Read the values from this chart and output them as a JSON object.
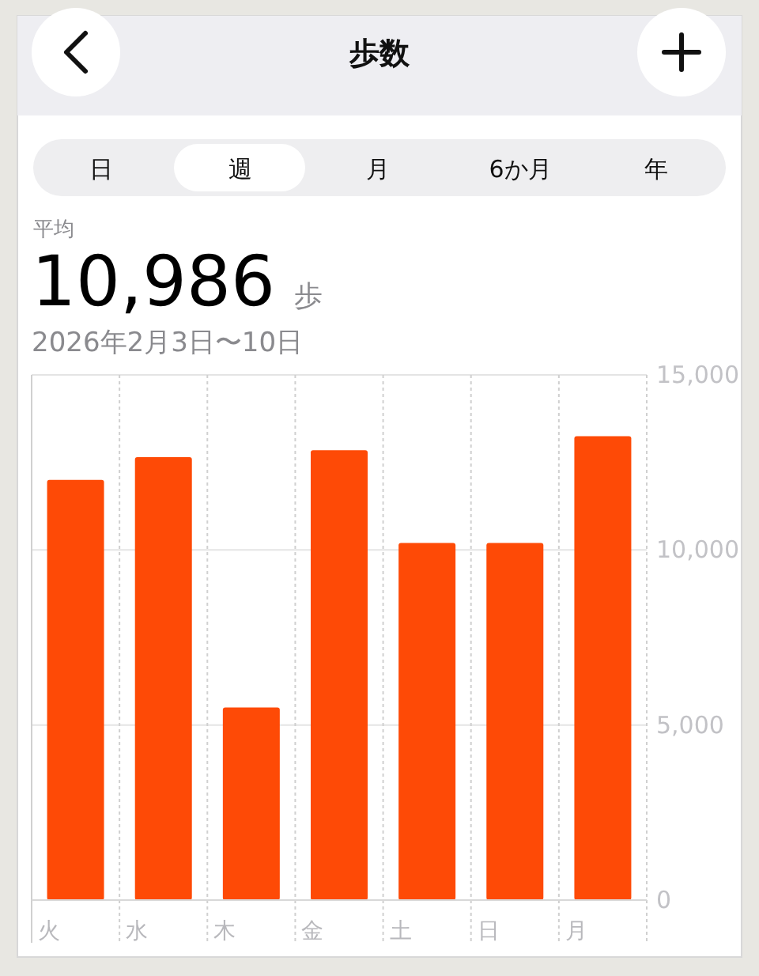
{
  "chart_data": {
    "type": "bar",
    "title": "歩数",
    "subtitle": "2026年2月3日〜10日",
    "annotations": [
      "日",
      "週",
      "月",
      "6か月",
      "年",
      "平均",
      "10,986",
      "歩"
    ],
    "categories": [
      "火",
      "水",
      "木",
      "金",
      "土",
      "日",
      "月"
    ],
    "values": [
      12000,
      12650,
      5500,
      12850,
      10200,
      10200,
      13250
    ],
    "color": "#fe4a06",
    "ylim": [
      0,
      15000
    ],
    "yticks": [
      0,
      {
        "value": 5000,
        "label": "5,000"
      },
      {
        "value": 10000,
        "label": "10,000"
      },
      {
        "value": 15000,
        "label": "15,000"
      }
    ],
    "grid": true
  }
}
